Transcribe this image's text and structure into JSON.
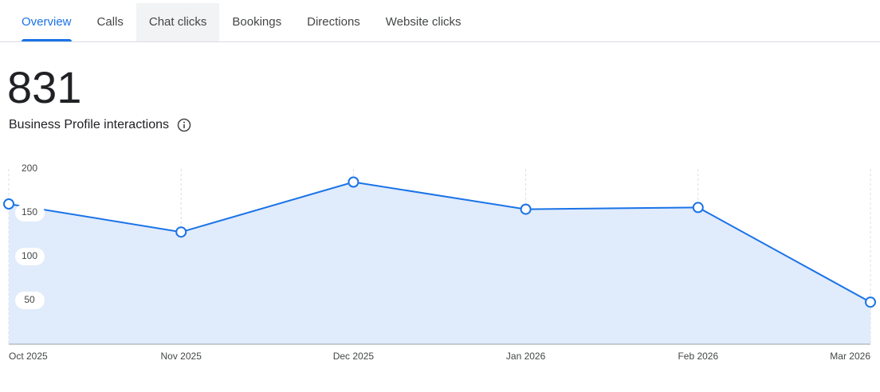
{
  "tabs": [
    "Overview",
    "Calls",
    "Chat clicks",
    "Bookings",
    "Directions",
    "Website clicks"
  ],
  "metric": {
    "value": 831,
    "label": "Business Profile interactions"
  },
  "chart_data": {
    "type": "area",
    "categories": [
      "Oct 2025",
      "Nov 2025",
      "Dec 2025",
      "Jan 2026",
      "Feb 2026",
      "Mar 2026"
    ],
    "values": [
      160,
      128,
      185,
      154,
      156,
      48
    ],
    "color": "#1a73e8",
    "fill": "#e0ebfb",
    "ylim": [
      0,
      200
    ],
    "yticks": [
      50,
      100,
      150,
      200
    ],
    "grid": true
  }
}
